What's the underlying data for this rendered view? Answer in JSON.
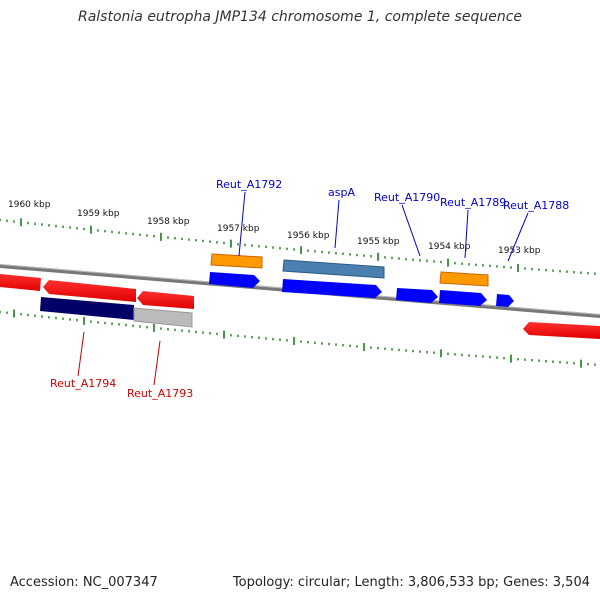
{
  "title": "Ralstonia eutropha JMP134 chromosome 1, complete sequence",
  "footer": {
    "accession": "Accession: NC_007347",
    "summary": "Topology: circular; Length: 3,806,533 bp; Genes: 3,504"
  },
  "colors": {
    "backbone": "#888888",
    "tick": "#1a7a1a",
    "forward_label": "#0000cc",
    "reverse_label": "#cc0000",
    "red": "#ff0000",
    "blue": "#0000ff",
    "orange": "#ff9900",
    "steel": "#4a7fb0",
    "navy": "#000066",
    "gray": "#b8b8b8"
  },
  "axis_labels": [
    "1960 kbp",
    "1959 kbp",
    "1958 kbp",
    "1957 kbp",
    "1956 kbp",
    "1955 kbp",
    "1954 kbp",
    "1953 kbp"
  ],
  "gene_labels": {
    "forward": [
      "Reut_A1792",
      "aspA",
      "Reut_A1790",
      "Reut_A1789",
      "Reut_A1788"
    ],
    "reverse": [
      "Reut_A1794",
      "Reut_A1793"
    ]
  }
}
